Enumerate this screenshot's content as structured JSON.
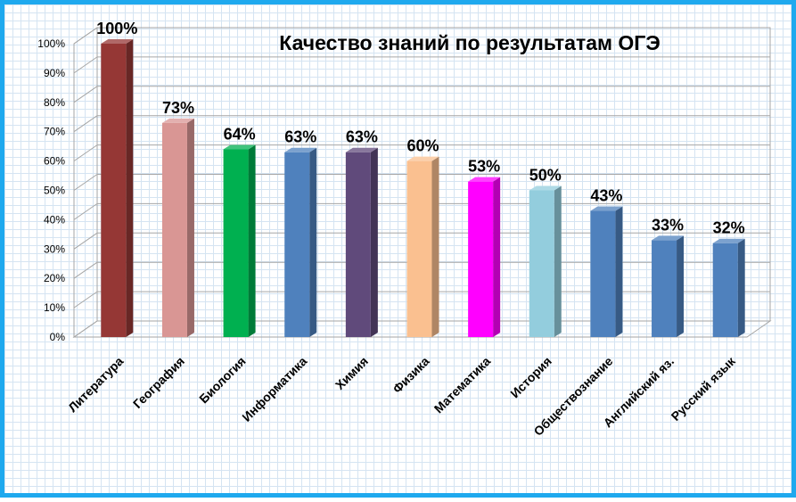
{
  "chart_data": {
    "type": "bar",
    "title": "Качество знаний по результатам ОГЭ",
    "categories": [
      "Литература",
      "География",
      "Биология",
      "Информатика",
      "Химия",
      "Физика",
      "Математика",
      "История",
      "Обществознание",
      "Английский яз.",
      "Русский язык"
    ],
    "values": [
      100,
      73,
      64,
      63,
      63,
      60,
      53,
      50,
      43,
      33,
      32
    ],
    "data_labels": [
      "100%",
      "73%",
      "64%",
      "63%",
      "63%",
      "60%",
      "53%",
      "50%",
      "43%",
      "33%",
      "32%"
    ],
    "yticks": [
      "0%",
      "10%",
      "20%",
      "30%",
      "40%",
      "50%",
      "60%",
      "70%",
      "80%",
      "90%",
      "100%"
    ],
    "ylim": [
      0,
      100
    ],
    "xlabel": "",
    "ylabel": "",
    "grid": true,
    "legend": "none",
    "colors": [
      "#953735",
      "#d99694",
      "#00b050",
      "#4f81bd",
      "#604a7b",
      "#fac090",
      "#ff00ff",
      "#93cddd",
      "#4f81bd",
      "#4f81bd",
      "#4f81bd"
    ],
    "page_border_color": "#1fa9ee"
  }
}
